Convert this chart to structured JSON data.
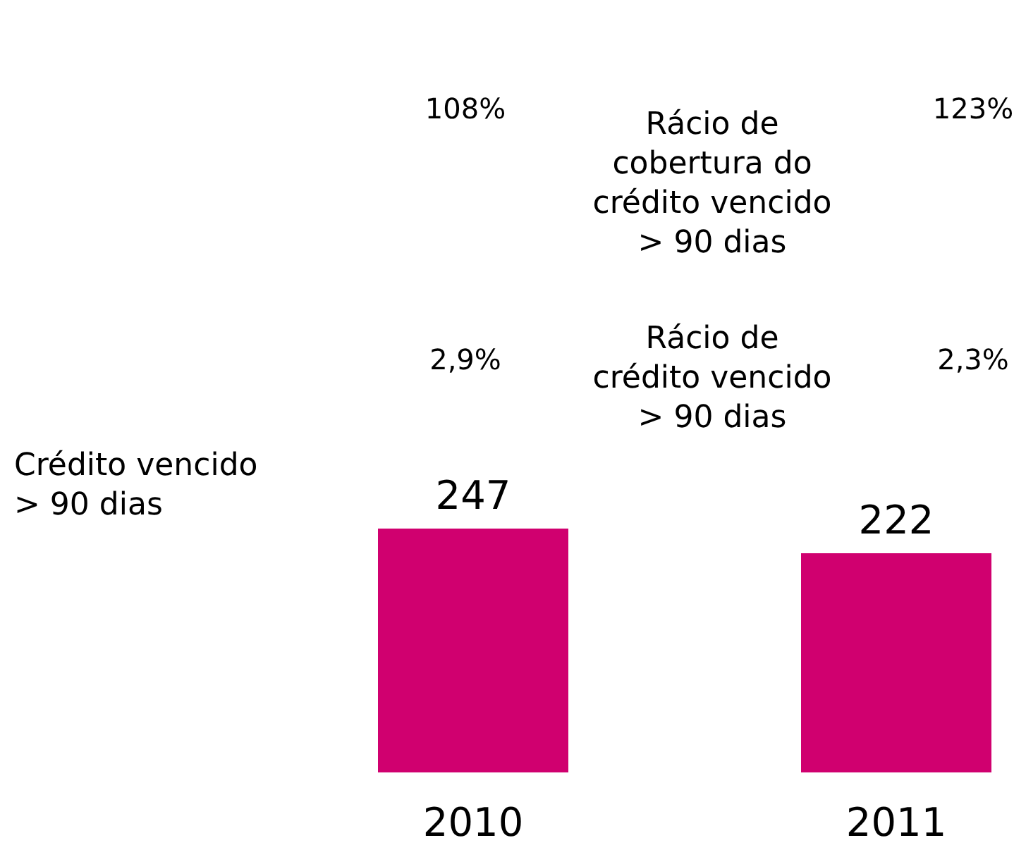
{
  "chart_data": {
    "type": "bar",
    "categories": [
      "2010",
      "2011"
    ],
    "series": [
      {
        "color": "#d0006f",
        "values": [
          247,
          222
        ]
      }
    ],
    "data_labels": true,
    "annotations": [
      "Crédito vencido\n> 90 dias",
      "Rácio de\ncobertura do\ncrédito vencido\n> 90 dias",
      "108%",
      "123%",
      "Rácio de\ncrédito vencido\n> 90 dias",
      "2,9%",
      "2,3%"
    ]
  }
}
